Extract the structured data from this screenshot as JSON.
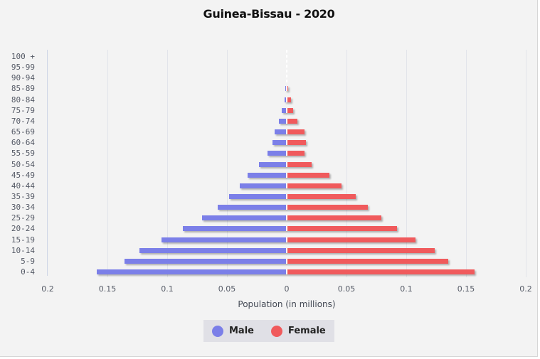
{
  "chart": {
    "title": "Guinea-Bissau - 2020",
    "xlabel": "Population (in millions)",
    "x_ticks": [
      "0.2",
      "0.15",
      "0.1",
      "0.05",
      "0",
      "0.05",
      "0.1",
      "0.15",
      "0.2"
    ],
    "legend": [
      {
        "label": "Male",
        "color": "#7b7fe8"
      },
      {
        "label": "Female",
        "color": "#f05a5c"
      }
    ]
  },
  "chart_data": {
    "type": "bar",
    "orientation": "horizontal",
    "subtype": "population-pyramid",
    "title": "Guinea-Bissau - 2020",
    "xlabel": "Population (in millions)",
    "ylabel": "",
    "xlim": [
      -0.2,
      0.2
    ],
    "x_tick_labels": [
      "0.2",
      "0.15",
      "0.1",
      "0.05",
      "0",
      "0.05",
      "0.1",
      "0.15",
      "0.2"
    ],
    "grid": true,
    "legend_position": "bottom",
    "categories": [
      "100 +",
      "95-99",
      "90-94",
      "85-89",
      "80-84",
      "75-79",
      "70-74",
      "65-69",
      "60-64",
      "55-59",
      "50-54",
      "45-49",
      "40-44",
      "35-39",
      "30-34",
      "25-29",
      "20-24",
      "15-19",
      "10-14",
      "5-9",
      "0-4"
    ],
    "series": [
      {
        "name": "Male",
        "color": "#7b7fe8",
        "values": [
          0.0,
          0.0,
          0.0,
          0.001,
          0.002,
          0.004,
          0.0065,
          0.01,
          0.012,
          0.016,
          0.023,
          0.033,
          0.039,
          0.048,
          0.058,
          0.071,
          0.087,
          0.105,
          0.123,
          0.136,
          0.159
        ]
      },
      {
        "name": "Female",
        "color": "#f05a5c",
        "values": [
          0.0,
          0.0,
          0.0,
          0.001,
          0.0035,
          0.0055,
          0.009,
          0.015,
          0.016,
          0.015,
          0.021,
          0.036,
          0.046,
          0.058,
          0.068,
          0.079,
          0.092,
          0.108,
          0.124,
          0.135,
          0.157
        ]
      }
    ]
  }
}
